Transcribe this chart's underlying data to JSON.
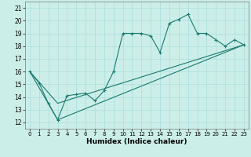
{
  "title": "",
  "xlabel": "Humidex (Indice chaleur)",
  "bg_color": "#cceee8",
  "line_color": "#1a7a6e",
  "grid_color": "#aadddd",
  "xlim": [
    -0.5,
    23.5
  ],
  "ylim": [
    11.5,
    21.5
  ],
  "xticks": [
    0,
    1,
    2,
    3,
    4,
    5,
    6,
    7,
    8,
    9,
    10,
    11,
    12,
    13,
    14,
    15,
    16,
    17,
    18,
    19,
    20,
    21,
    22,
    23
  ],
  "yticks": [
    12,
    13,
    14,
    15,
    16,
    17,
    18,
    19,
    20,
    21
  ],
  "line1_x": [
    0,
    1,
    2,
    3,
    4,
    5,
    6,
    7,
    8,
    9,
    10,
    11,
    12,
    13,
    14,
    15,
    16,
    17,
    18,
    19,
    20,
    21,
    22,
    23
  ],
  "line1_y": [
    16.0,
    15.1,
    13.5,
    12.2,
    14.1,
    14.2,
    14.3,
    13.7,
    14.5,
    16.0,
    19.0,
    19.0,
    19.0,
    18.8,
    17.5,
    19.8,
    20.1,
    20.5,
    19.0,
    19.0,
    18.5,
    18.0,
    18.5,
    18.1
  ],
  "line2_x": [
    0,
    3,
    23
  ],
  "line2_y": [
    16.0,
    13.5,
    18.1
  ],
  "line3_x": [
    0,
    3,
    23
  ],
  "line3_y": [
    16.0,
    12.2,
    18.1
  ]
}
